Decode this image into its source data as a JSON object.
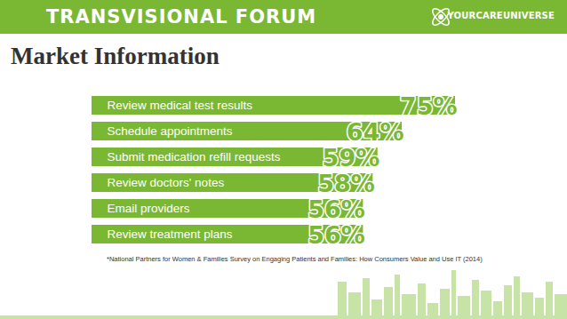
{
  "header": {
    "title": "TRANSVISIONAL FORUM",
    "logo": "YOURCAREUNIVERSE"
  },
  "chart_data": {
    "type": "bar",
    "title": "Market Information",
    "orientation": "horizontal",
    "categories": [
      "Review medical test results",
      "Schedule appointments",
      "Submit medication refill requests",
      "Review doctors' notes",
      "Email providers",
      "Review treatment plans"
    ],
    "values": [
      75,
      64,
      59,
      58,
      56,
      56
    ],
    "value_labels": [
      "75%",
      "64%",
      "59%",
      "58%",
      "56%",
      "56%"
    ],
    "data_labels": true,
    "tick_labels": "y",
    "color": "#7ab833",
    "caption": "*National Partners for Women & Families Survey on Engaging Patients and Families: How Consumers Value and Use IT (2014)"
  }
}
